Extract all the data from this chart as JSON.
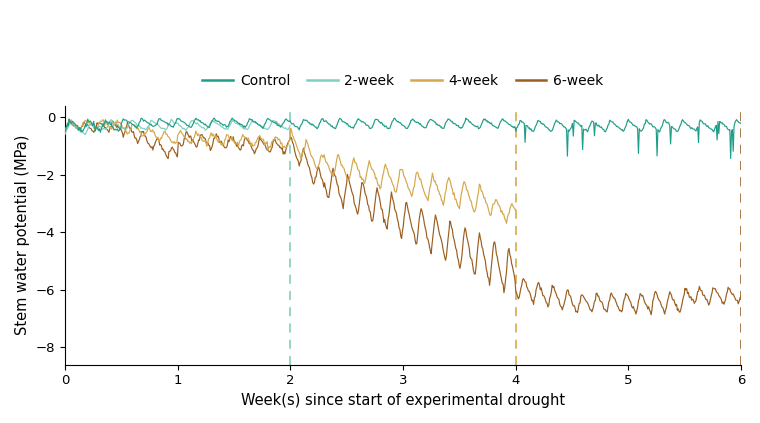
{
  "title": "",
  "xlabel": "Week(s) since start of experimental drought",
  "ylabel": "Stem water potential (MPa)",
  "xlim": [
    0,
    6
  ],
  "ylim": [
    -8.6,
    0.4
  ],
  "yticks": [
    0,
    -2,
    -4,
    -6,
    -8
  ],
  "xticks": [
    0,
    1,
    2,
    3,
    4,
    5,
    6
  ],
  "colors": {
    "control": "#1e9e89",
    "week2": "#7ecfc0",
    "week4": "#d4a84b",
    "week6": "#9b5e1e"
  },
  "vlines": [
    {
      "x": 2.0,
      "color": "#7ecfc0"
    },
    {
      "x": 4.0,
      "color": "#d4a84b"
    },
    {
      "x": 6.0,
      "color": "#9b5e1e"
    }
  ],
  "legend_labels": [
    "Control",
    "2-week",
    "4-week",
    "6-week"
  ],
  "background_color": "#ffffff"
}
